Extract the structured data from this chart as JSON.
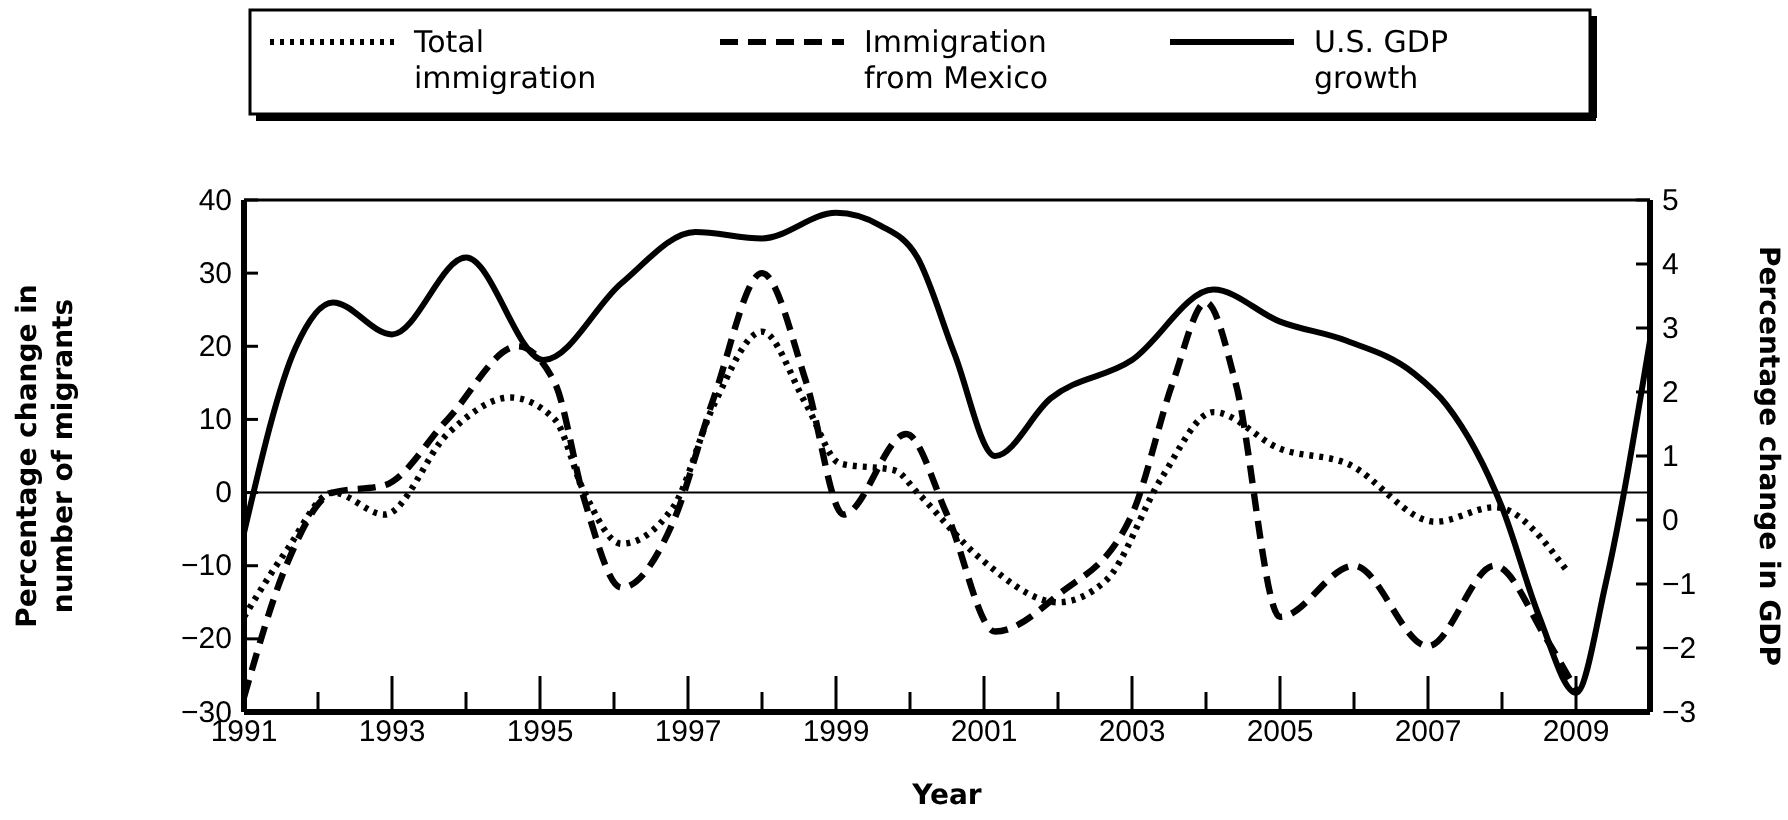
{
  "chart_data": {
    "type": "line",
    "xlabel": "Year",
    "ylabel": "Percentage change in number of migrants",
    "y2label": "Percentage change in GDP",
    "xlim": [
      1991,
      2010
    ],
    "xticks": [
      1991,
      {
        "value": 1992,
        "label": null
      },
      1993,
      {
        "value": 1994,
        "label": null
      },
      1995,
      {
        "value": 1996,
        "label": null
      },
      1997,
      {
        "value": 1998,
        "label": null
      },
      1999,
      {
        "value": 2000,
        "label": null
      },
      2001,
      {
        "value": 2002,
        "label": null
      },
      2003,
      {
        "value": 2004,
        "label": null
      },
      2005,
      {
        "value": 2006,
        "label": null
      },
      2007,
      {
        "value": 2008,
        "label": null
      },
      2009
    ],
    "ylim": [
      -30,
      40
    ],
    "yticks": [
      -30,
      -20,
      -10,
      0,
      10,
      20,
      30,
      40
    ],
    "y2lim": [
      -3,
      5
    ],
    "y2ticks": [
      -3,
      -2,
      -1,
      0,
      1,
      2,
      3,
      4,
      5
    ],
    "ref_lines": [
      {
        "axis": "y",
        "value": 0
      }
    ],
    "legend": "top",
    "grid": false,
    "series": [
      {
        "name": "Total immigration",
        "color": "#000000",
        "line_style": "dotted",
        "x": [
          1991,
          1991.57,
          1992.2,
          1992.9,
          1993.75,
          1994.6,
          1995.2,
          1995.6,
          1996.1,
          1996.8,
          1997.35,
          1998,
          1998.6,
          1999.05,
          1999.8,
          2000.1,
          2000.95,
          2002,
          2002.65,
          2003.4,
          2004.1,
          2005,
          2005.9,
          2007.1,
          2007.9,
          2008.9
        ],
        "values": [
          -17,
          -8,
          0,
          -3,
          8,
          13,
          10,
          0,
          -7,
          -2,
          12,
          22,
          12,
          4,
          3,
          0,
          -9,
          -15,
          -12,
          2,
          11,
          6,
          4,
          -4,
          -2,
          -11
        ]
      },
      {
        "name": "Immigration from Mexico",
        "color": "#000000",
        "line_style": "dashed",
        "x": [
          1991,
          1991.57,
          1992.2,
          1992.9,
          1993.75,
          1994.7,
          1995.2,
          1995.6,
          1996.1,
          1996.8,
          1997.35,
          1998,
          1998.6,
          1999.1,
          1999.95,
          2000.5,
          2001.15,
          2002,
          2003,
          2003.55,
          2004,
          2004.4,
          2005,
          2006,
          2007,
          2007.9,
          2008.6,
          2009
        ],
        "values": [
          -28,
          -10,
          0,
          1,
          10,
          20,
          15,
          -1,
          -13,
          -4,
          13,
          30,
          15,
          -3,
          8,
          -3,
          -19,
          -14,
          -3,
          15,
          26,
          15,
          -17,
          -10,
          -21,
          -10,
          -20,
          -27
        ]
      },
      {
        "name": "U.S. GDP growth",
        "color": "#000000",
        "line_style": "solid",
        "axis": "y2",
        "x": [
          1991,
          1991.7,
          1992.2,
          1993,
          1994,
          1995.05,
          1996.1,
          1997.1,
          1998,
          1999,
          1999.6,
          2000.1,
          2000.6,
          2001.15,
          2001.9,
          2003,
          2004.1,
          2005,
          2005.9,
          2006.8,
          2007.25,
          2008,
          2008.5,
          2009,
          2009.4,
          2010
        ],
        "values": [
          -0.2,
          2.7,
          3.4,
          2.9,
          4.1,
          2.5,
          3.7,
          4.5,
          4.4,
          4.8,
          4.6,
          4.1,
          2.6,
          1,
          1.9,
          2.5,
          3.6,
          3.1,
          2.8,
          2.3,
          1.8,
          0.2,
          -1.5,
          -2.7,
          -1,
          2.8
        ]
      }
    ]
  }
}
